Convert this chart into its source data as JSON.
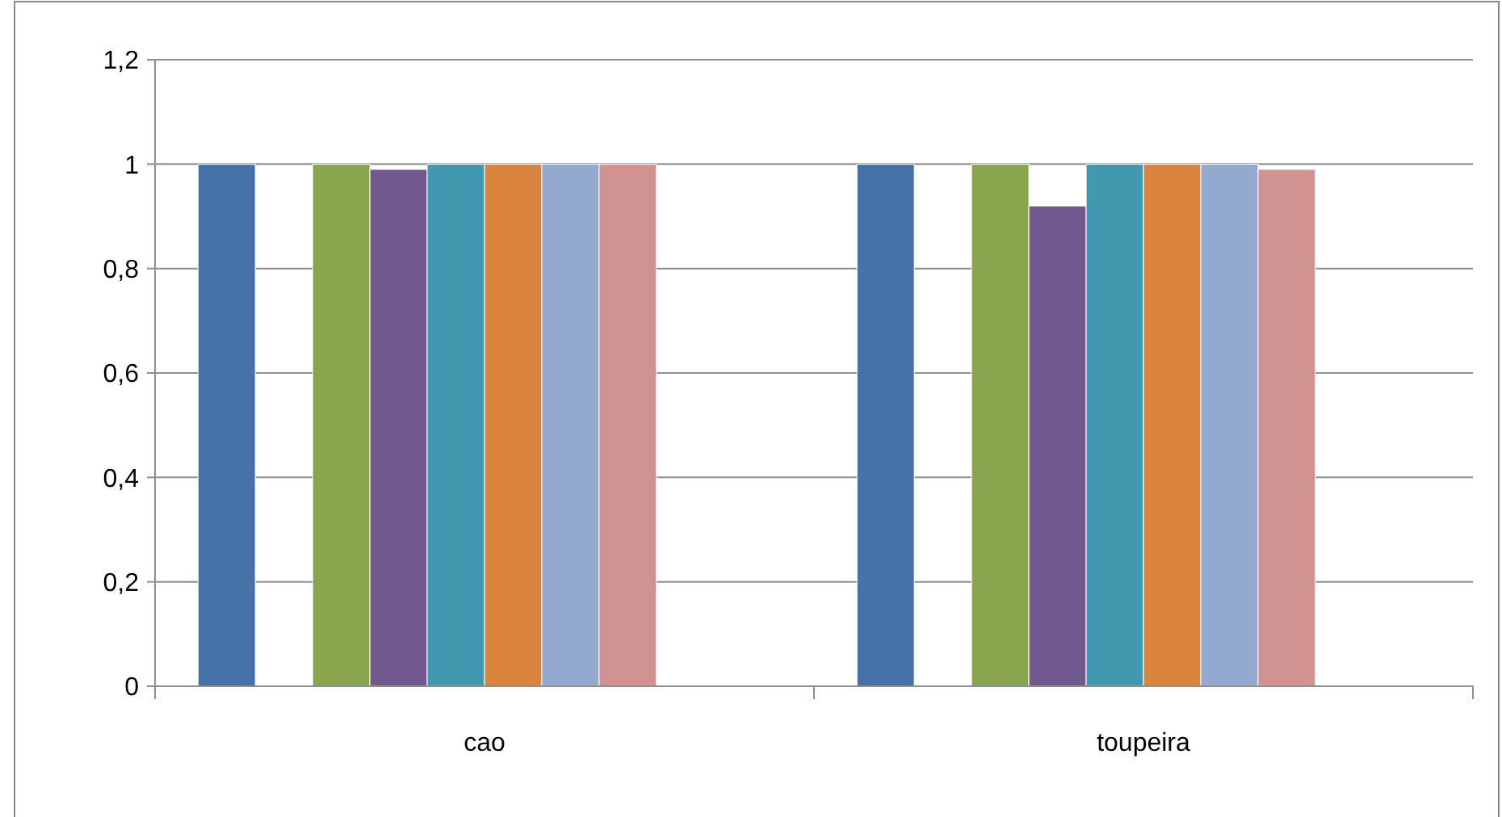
{
  "chart_data": {
    "type": "bar",
    "categories": [
      "cao",
      "toupeira"
    ],
    "series": [
      {
        "color": "#4572a7",
        "values": [
          1,
          1
        ]
      },
      {
        "color": "#aa4643",
        "values": [
          0,
          0
        ]
      },
      {
        "color": "#89a54e",
        "values": [
          1,
          1
        ]
      },
      {
        "color": "#71588f",
        "values": [
          0.99,
          0.92
        ]
      },
      {
        "color": "#4198af",
        "values": [
          1,
          1
        ]
      },
      {
        "color": "#db843d",
        "values": [
          1,
          1
        ]
      },
      {
        "color": "#93a9cf",
        "values": [
          1,
          1
        ]
      },
      {
        "color": "#d19392",
        "values": [
          1,
          0.99
        ]
      },
      {
        "color": "#b9cd96",
        "values": [
          0,
          0
        ]
      },
      {
        "color": "#a99bbd",
        "values": [
          0,
          0
        ]
      }
    ],
    "ylim": [
      0,
      1.2
    ],
    "yticks": [
      {
        "value": 0,
        "label": "0"
      },
      {
        "value": 0.2,
        "label": "0,2"
      },
      {
        "value": 0.4,
        "label": "0,4"
      },
      {
        "value": 0.6,
        "label": "0,6"
      },
      {
        "value": 0.8,
        "label": "0,8"
      },
      {
        "value": 1,
        "label": "1"
      },
      {
        "value": 1.2,
        "label": "1,2"
      }
    ],
    "grid": "y"
  }
}
